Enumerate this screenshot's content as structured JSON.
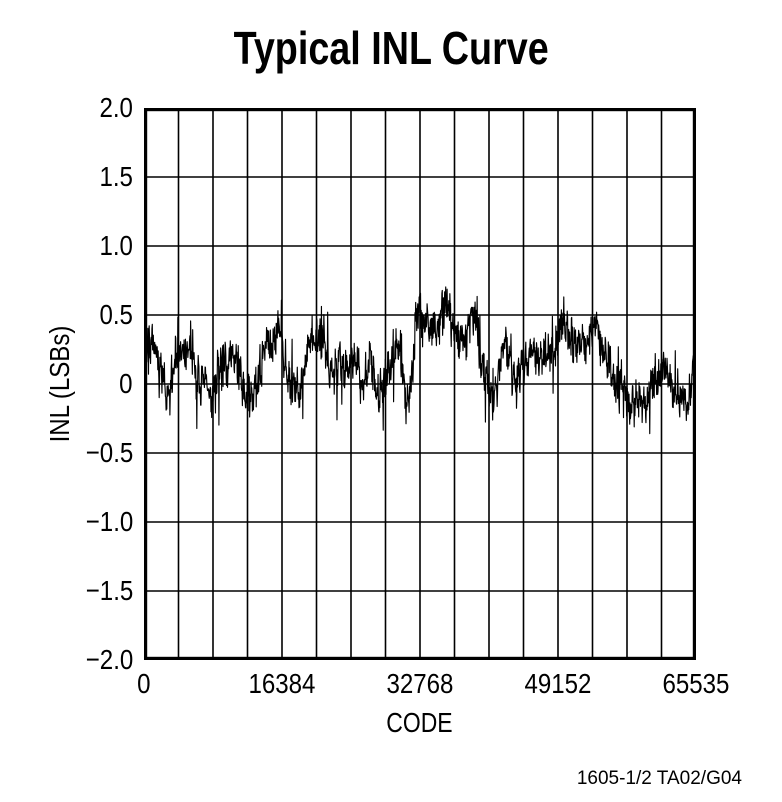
{
  "title": "Typical INL Curve",
  "caption": "1605-1/2 TA02/G04",
  "colors": {
    "foreground": "#000000",
    "background": "#ffffff"
  },
  "chart_data": {
    "type": "line",
    "title": "Typical INL Curve",
    "xlabel": "CODE",
    "ylabel": "INL (LSBs)",
    "xlim": [
      0,
      65535
    ],
    "ylim": [
      -2.0,
      2.0
    ],
    "x_ticks": [
      "0",
      "16384",
      "32768",
      "49152",
      "65535"
    ],
    "x_tick_values": [
      0,
      16384,
      32768,
      49152,
      65535
    ],
    "y_ticks": [
      "2.0",
      "1.5",
      "1.0",
      "0.5",
      "0",
      "−0.5",
      "−1.0",
      "−1.5",
      "−2.0"
    ],
    "y_tick_values": [
      2.0,
      1.5,
      1.0,
      0.5,
      0,
      -0.5,
      -1.0,
      -1.5,
      -2.0
    ],
    "grid": {
      "on": true,
      "x_divisions": 16,
      "y_divisions": 8
    },
    "legend": "none",
    "series": [
      {
        "name": "INL",
        "description": "Dense noisy INL trace, mean about +0.2 LSB, peak +0.78 LSB near code 32800, minimum about -0.35 LSB near codes 58000-59500 and 64300",
        "envelope": [
          [
            0,
            0.17
          ],
          [
            700,
            0.28
          ],
          [
            1500,
            0.18
          ],
          [
            2100,
            0.02
          ],
          [
            2700,
            -0.12
          ],
          [
            3300,
            0.05
          ],
          [
            4000,
            0.25
          ],
          [
            4800,
            0.3
          ],
          [
            5600,
            0.22
          ],
          [
            6300,
            0.08
          ],
          [
            7100,
            -0.02
          ],
          [
            7900,
            -0.1
          ],
          [
            8700,
            0.0
          ],
          [
            9500,
            0.15
          ],
          [
            10400,
            0.2
          ],
          [
            11300,
            0.12
          ],
          [
            12100,
            -0.02
          ],
          [
            12700,
            -0.15
          ],
          [
            13400,
            0.02
          ],
          [
            14200,
            0.2
          ],
          [
            15100,
            0.3
          ],
          [
            16000,
            0.38
          ],
          [
            16600,
            0.2
          ],
          [
            17400,
            0.02
          ],
          [
            18200,
            -0.05
          ],
          [
            18900,
            0.12
          ],
          [
            19700,
            0.3
          ],
          [
            20600,
            0.4
          ],
          [
            21300,
            0.3
          ],
          [
            22000,
            0.12
          ],
          [
            22800,
            0.05
          ],
          [
            23600,
            0.12
          ],
          [
            24400,
            0.2
          ],
          [
            25200,
            0.15
          ],
          [
            26000,
            0.05
          ],
          [
            26800,
            0.18
          ],
          [
            27600,
            0.02
          ],
          [
            28400,
            -0.08
          ],
          [
            29200,
            0.12
          ],
          [
            30000,
            0.25
          ],
          [
            30700,
            0.05
          ],
          [
            31300,
            -0.12
          ],
          [
            31900,
            0.05
          ],
          [
            32300,
            0.5
          ],
          [
            32800,
            0.62
          ],
          [
            33300,
            0.48
          ],
          [
            34000,
            0.4
          ],
          [
            34800,
            0.45
          ],
          [
            35600,
            0.52
          ],
          [
            36200,
            0.55
          ],
          [
            36800,
            0.4
          ],
          [
            37400,
            0.22
          ],
          [
            38100,
            0.35
          ],
          [
            38800,
            0.5
          ],
          [
            39400,
            0.42
          ],
          [
            40100,
            0.2
          ],
          [
            40800,
            0.0
          ],
          [
            41400,
            -0.08
          ],
          [
            42100,
            0.12
          ],
          [
            42900,
            0.3
          ],
          [
            43600,
            0.15
          ],
          [
            44200,
            -0.05
          ],
          [
            44900,
            0.1
          ],
          [
            45700,
            0.22
          ],
          [
            46500,
            0.18
          ],
          [
            47300,
            0.25
          ],
          [
            48100,
            0.22
          ],
          [
            48800,
            0.3
          ],
          [
            49500,
            0.42
          ],
          [
            50200,
            0.45
          ],
          [
            50900,
            0.3
          ],
          [
            51600,
            0.2
          ],
          [
            52300,
            0.28
          ],
          [
            53100,
            0.38
          ],
          [
            53800,
            0.42
          ],
          [
            54500,
            0.28
          ],
          [
            55300,
            0.15
          ],
          [
            56000,
            0.08
          ],
          [
            56800,
            -0.02
          ],
          [
            57500,
            -0.12
          ],
          [
            58300,
            -0.2
          ],
          [
            59100,
            -0.15
          ],
          [
            59900,
            -0.12
          ],
          [
            60600,
            0.0
          ],
          [
            61400,
            0.12
          ],
          [
            62200,
            0.08
          ],
          [
            62900,
            0.0
          ],
          [
            63600,
            -0.08
          ],
          [
            64300,
            -0.15
          ],
          [
            64900,
            -0.02
          ],
          [
            65200,
            0.08
          ],
          [
            65535,
            0.15
          ]
        ],
        "noise": {
          "seed": 7,
          "samples": 1600,
          "dense_amplitude": 0.11,
          "spike_probability": 0.06,
          "spike_amplitude": 0.3,
          "wobble": [
            [
              911,
              0.045
            ],
            [
              233,
              0.05
            ],
            [
              57,
              0.035
            ]
          ],
          "value_min": -0.36,
          "value_max": 0.8
        }
      }
    ]
  }
}
